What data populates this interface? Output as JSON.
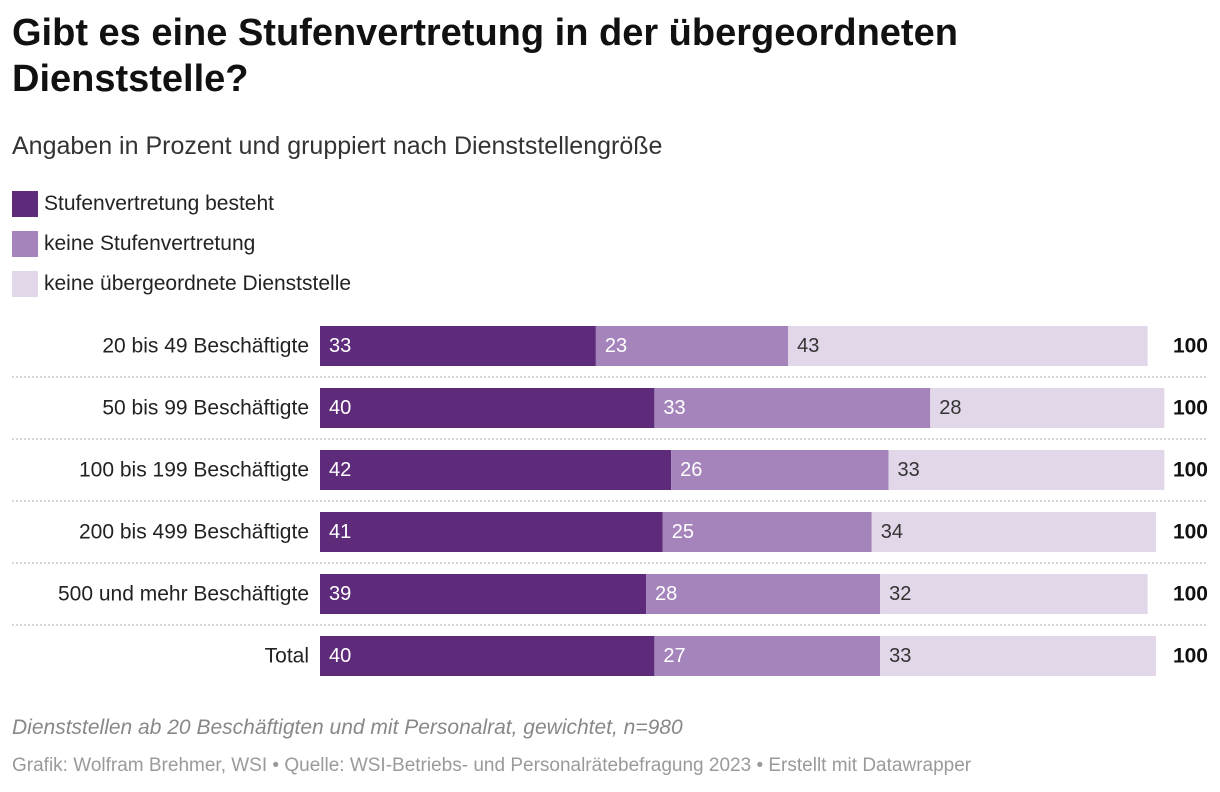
{
  "title": "Gibt es eine Stufenvertretung in der übergeordneten Dienststelle?",
  "subtitle": "Angaben in Prozent und gruppiert nach Dienststellengröße",
  "legend": [
    {
      "label": "Stufenvertretung besteht",
      "color": "#5e2b7b"
    },
    {
      "label": "keine Stufenvertretung",
      "color": "#a584bc"
    },
    {
      "label": "keine übergeordnete Dienststelle",
      "color": "#e2d7e9"
    }
  ],
  "chart_data": {
    "type": "bar",
    "orientation": "horizontal",
    "stacked": true,
    "categories": [
      "20 bis 49 Beschäftigte",
      "50 bis 99 Beschäftigte",
      "100 bis 199 Beschäftigte",
      "200 bis 499 Beschäftigte",
      "500 und mehr Beschäftigte",
      "Total"
    ],
    "series": [
      {
        "name": "Stufenvertretung besteht",
        "color": "#5e2b7b",
        "label_color": "#ffffff",
        "values": [
          33,
          40,
          42,
          41,
          39,
          40
        ]
      },
      {
        "name": "keine Stufenvertretung",
        "color": "#a584bc",
        "label_color": "#ffffff",
        "values": [
          23,
          33,
          26,
          25,
          28,
          27
        ]
      },
      {
        "name": "keine übergeordnete Dienststelle",
        "color": "#e2d7e9",
        "label_color": "#333333",
        "values": [
          43,
          28,
          33,
          34,
          32,
          33
        ]
      }
    ],
    "totals": [
      100,
      100,
      100,
      100,
      100,
      100
    ],
    "xlim": [
      0,
      100
    ],
    "grid": false,
    "legend_position": "top-left"
  },
  "note": "Dienststellen ab 20 Beschäftigten und mit Personalrat, gewichtet, n=980",
  "source": "Grafik: Wolfram Brehmer, WSI • Quelle: WSI-Betriebs- und Personalrätebefragung 2023 • Erstellt mit Datawrapper"
}
